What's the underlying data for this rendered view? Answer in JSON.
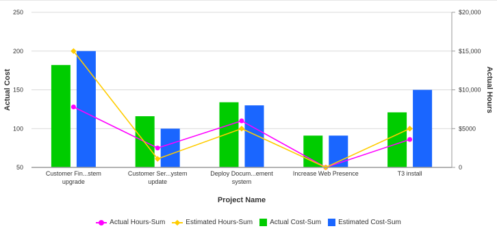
{
  "chart_data": {
    "type": "bar",
    "categories": [
      [
        "Customer Fin...stem",
        "upgrade"
      ],
      [
        "Customer Ser...ystem",
        "update"
      ],
      [
        "Deploy Docum...ement",
        "system"
      ],
      [
        "Increase Web Presence"
      ],
      [
        "T3 install"
      ]
    ],
    "series": [
      {
        "name": "Actual Cost-Sum",
        "kind": "bar",
        "axis": "left",
        "color": "#00cc00",
        "values": [
          182,
          116,
          134,
          91,
          121
        ]
      },
      {
        "name": "Estimated Cost-Sum",
        "kind": "bar",
        "axis": "left",
        "color": "#1a66ff",
        "values": [
          200,
          100,
          130,
          91,
          150
        ]
      },
      {
        "name": "Actual Hours-Sum",
        "kind": "line",
        "axis": "right",
        "color": "#ff00ff",
        "marker": "circle",
        "values": [
          7800,
          2500,
          6000,
          0,
          3600
        ]
      },
      {
        "name": "Estimated Hours-Sum",
        "kind": "line",
        "axis": "right",
        "color": "#ffcc00",
        "marker": "diamond",
        "values": [
          15000,
          1100,
          5000,
          0,
          5000
        ]
      }
    ],
    "xlabel": "Project Name",
    "ylabel": "Actual Cost",
    "y2label": "Actual Hours",
    "ylim": [
      50,
      250
    ],
    "y2lim": [
      0,
      20000
    ],
    "yticks": [
      "50",
      "100",
      "150",
      "200",
      "250"
    ],
    "y2ticks": [
      "0",
      "$5000",
      "$10,000",
      "$15,000",
      "$20,000"
    ],
    "grid": true,
    "legend_position": "bottom"
  }
}
